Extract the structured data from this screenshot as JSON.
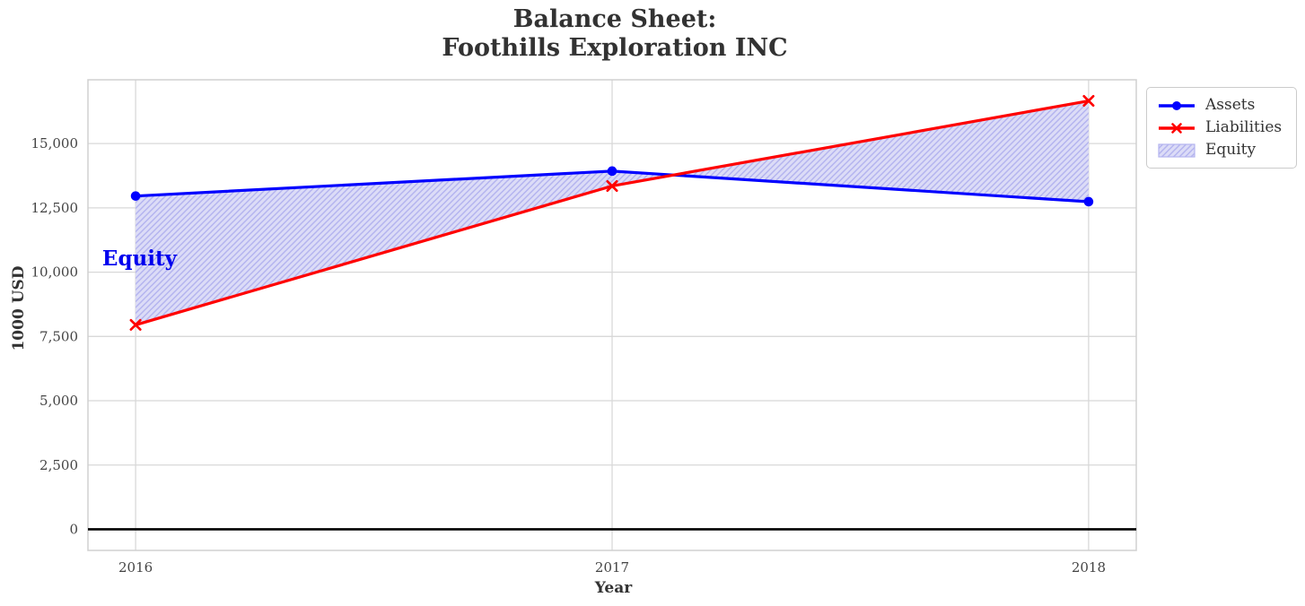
{
  "chart_data": {
    "type": "line",
    "title": "Balance Sheet:\nFoothills Exploration INC",
    "title_lines": [
      "Balance Sheet:",
      "Foothills Exploration INC"
    ],
    "xlabel": "Year",
    "ylabel": "1000 USD",
    "x": [
      2016,
      2017,
      2018
    ],
    "series": [
      {
        "name": "Assets",
        "color": "#0000ff",
        "marker": "circle",
        "values": [
          12960,
          13930,
          12740
        ]
      },
      {
        "name": "Liabilities",
        "color": "#ff0000",
        "marker": "x",
        "values": [
          7950,
          13350,
          16660
        ]
      }
    ],
    "area": {
      "name": "Equity",
      "between": [
        "Assets",
        "Liabilities"
      ],
      "fill_color": "#dcdcf7",
      "hatch_color": "#b4b4ef",
      "hatch_pattern": "///",
      "values": [
        5010,
        580,
        -3920
      ]
    },
    "annotation": {
      "text": "Equity",
      "x": 2015.93,
      "y": 10500,
      "color": "#0000ee"
    },
    "xlim": [
      2015.9,
      2018.1
    ],
    "ylim": [
      -820,
      17480
    ],
    "xticks": [
      2016,
      2017,
      2018
    ],
    "xtick_labels": [
      "2016",
      "2017",
      "2018"
    ],
    "yticks": [
      0,
      2500,
      5000,
      7500,
      10000,
      12500,
      15000
    ],
    "ytick_labels": [
      "0",
      "2,500",
      "5,000",
      "7,500",
      "10,000",
      "12,500",
      "15,000"
    ],
    "grid": true,
    "grid_color": "#d8d8d8",
    "spine_color": "#d0d0d0",
    "zero_line": {
      "y": 0,
      "color": "#000000"
    },
    "legend_position": "outside upper right"
  },
  "legend": {
    "items": [
      {
        "label": "Assets",
        "swatch": "line-circle",
        "color": "#0000ff"
      },
      {
        "label": "Liabilities",
        "swatch": "line-x",
        "color": "#ff0000"
      },
      {
        "label": "Equity",
        "swatch": "hatched-patch",
        "color": "#b4b4ef"
      }
    ]
  }
}
